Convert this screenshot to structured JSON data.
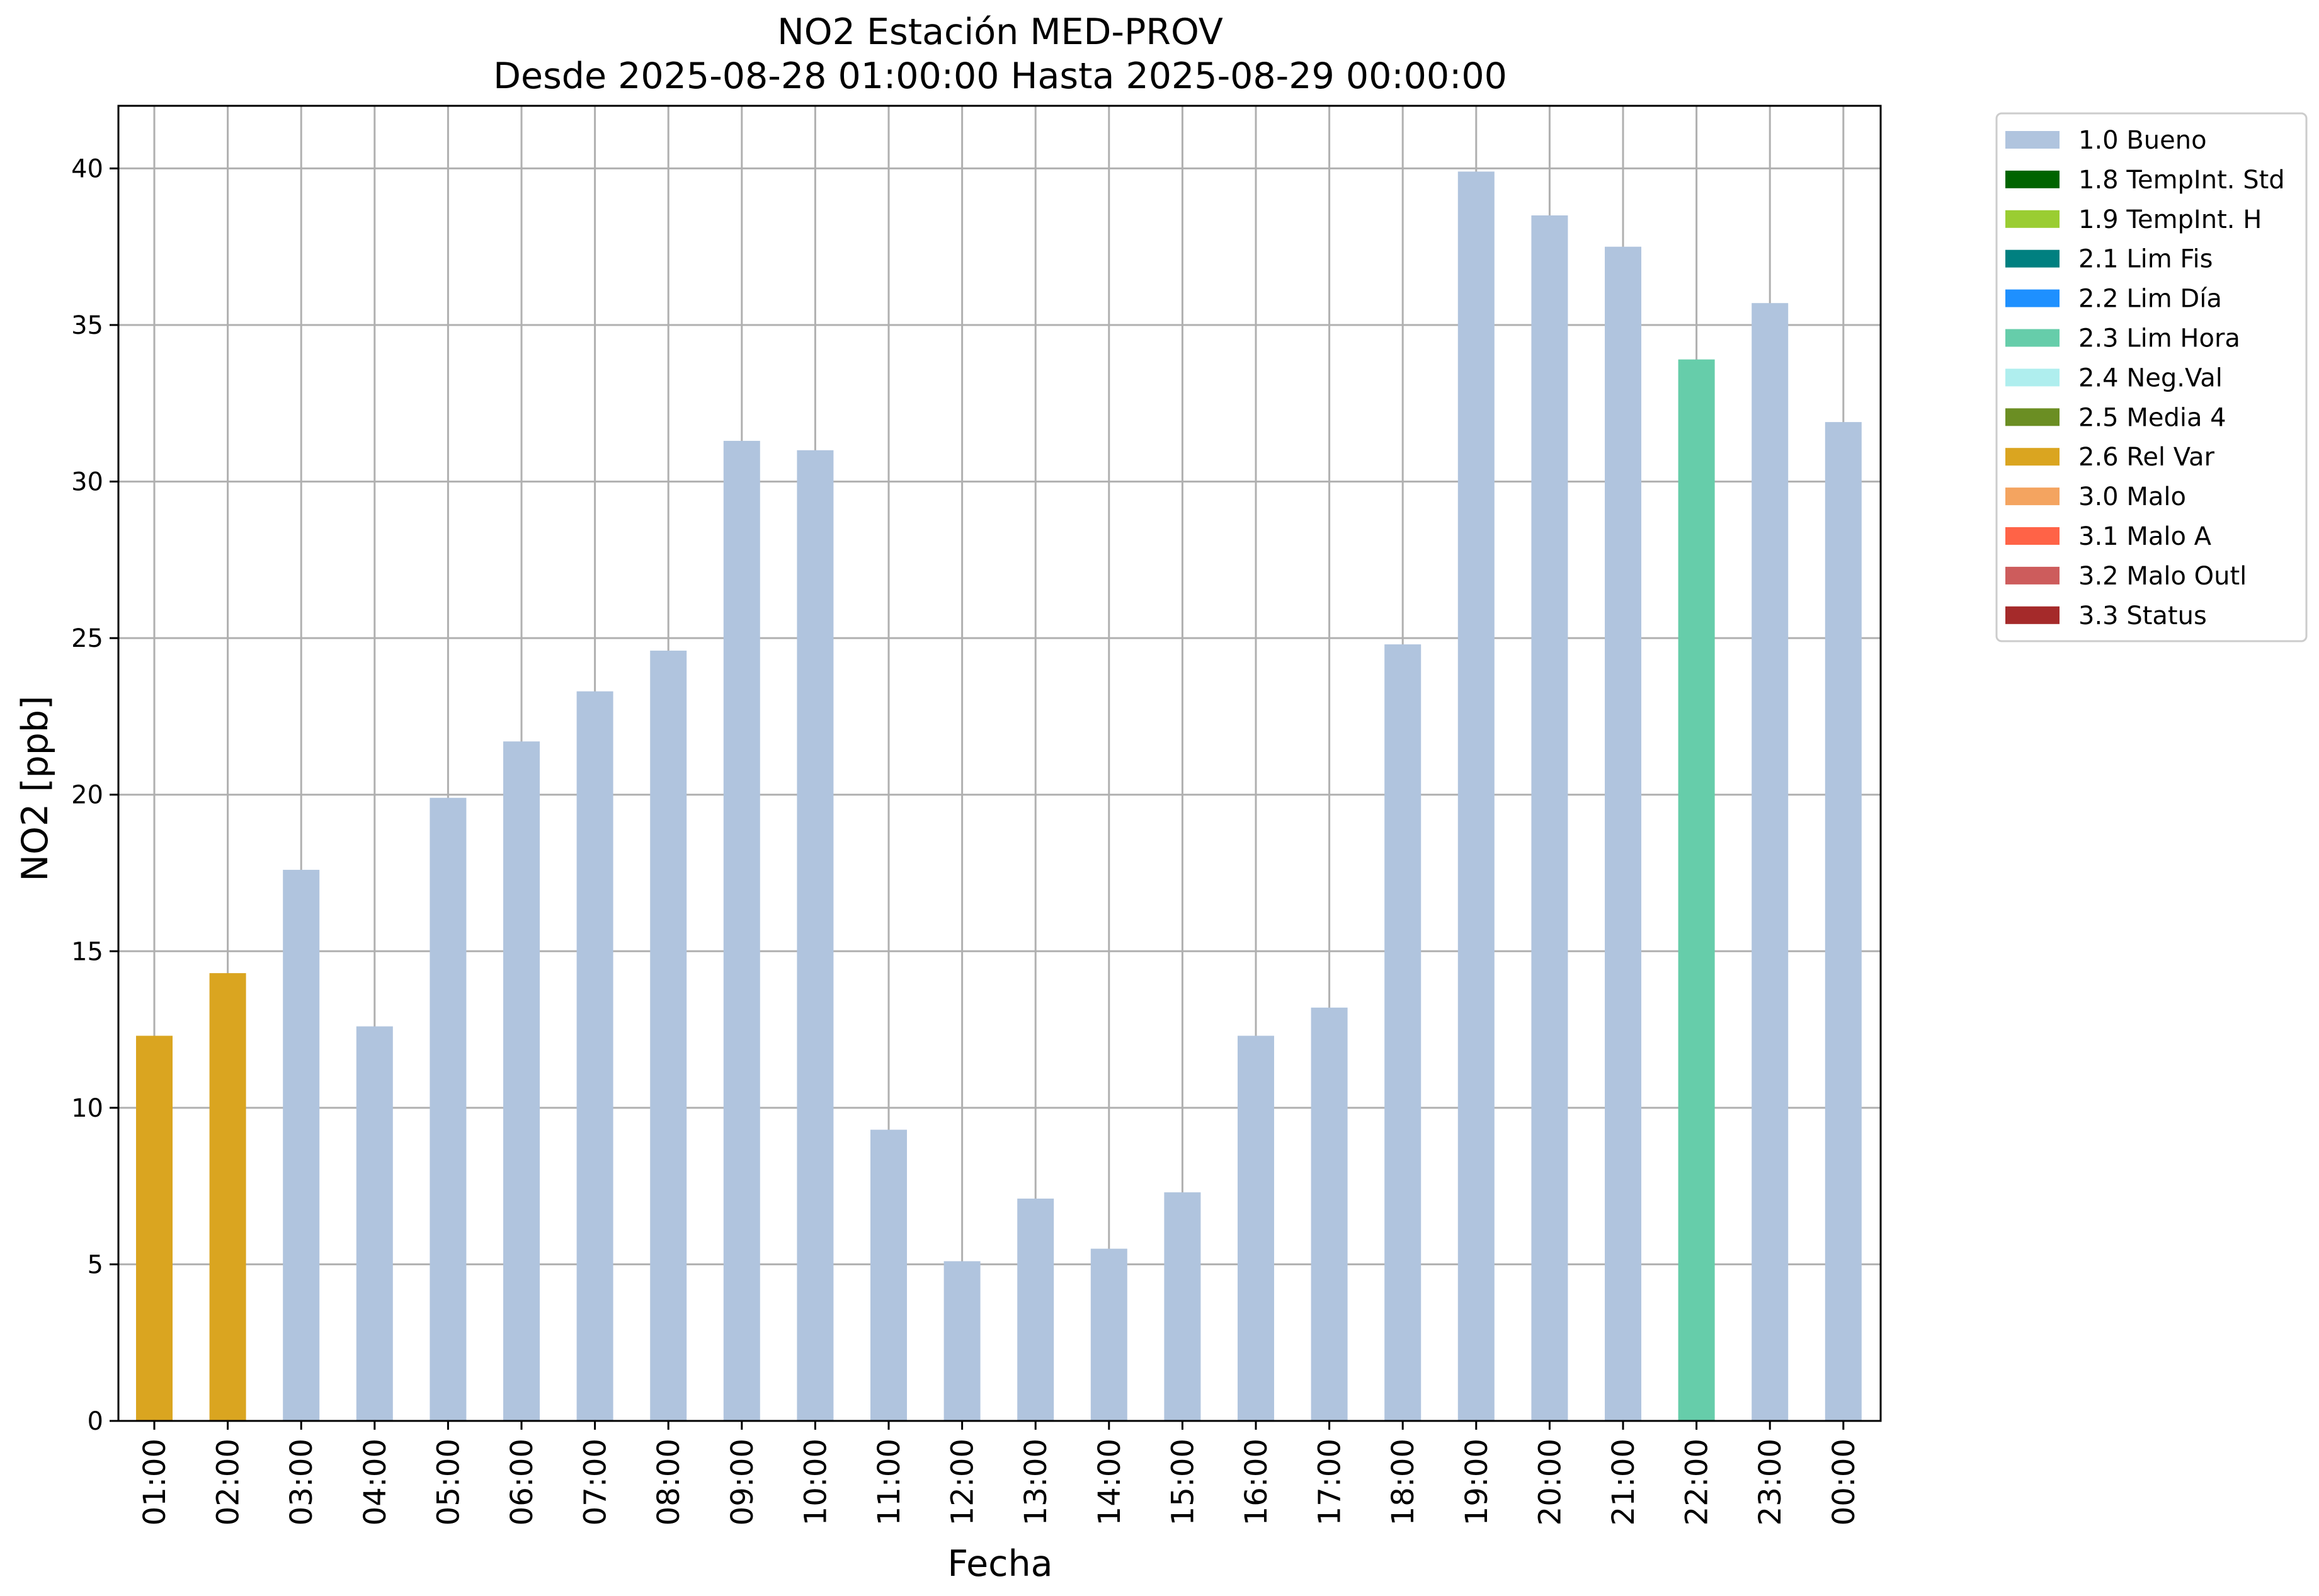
{
  "chart_data": {
    "type": "bar",
    "title": "NO2 Estación MED-PROV",
    "subtitle": "Desde 2025-08-28 01:00:00 Hasta 2025-08-29 00:00:00",
    "xlabel": "Fecha",
    "ylabel": "NO2 [ppb]",
    "ylim": [
      0,
      42
    ],
    "yticks": [
      0,
      5,
      10,
      15,
      20,
      25,
      30,
      35,
      40
    ],
    "grid": true,
    "legend_position": "outside-top-right",
    "categories": [
      "01:00",
      "02:00",
      "03:00",
      "04:00",
      "05:00",
      "06:00",
      "07:00",
      "08:00",
      "09:00",
      "10:00",
      "11:00",
      "12:00",
      "13:00",
      "14:00",
      "15:00",
      "16:00",
      "17:00",
      "18:00",
      "19:00",
      "20:00",
      "21:00",
      "22:00",
      "23:00",
      "00:00"
    ],
    "values": [
      12.3,
      14.3,
      17.6,
      12.6,
      19.9,
      21.7,
      23.3,
      24.6,
      31.3,
      31.0,
      9.3,
      5.1,
      7.1,
      5.5,
      7.3,
      12.3,
      13.2,
      24.8,
      39.9,
      38.5,
      37.5,
      33.9,
      35.7,
      31.9
    ],
    "flags": [
      "2.6 Rel Var",
      "2.6 Rel Var",
      "1.0 Bueno",
      "1.0 Bueno",
      "1.0 Bueno",
      "1.0 Bueno",
      "1.0 Bueno",
      "1.0 Bueno",
      "1.0 Bueno",
      "1.0 Bueno",
      "1.0 Bueno",
      "1.0 Bueno",
      "1.0 Bueno",
      "1.0 Bueno",
      "1.0 Bueno",
      "1.0 Bueno",
      "1.0 Bueno",
      "1.0 Bueno",
      "1.0 Bueno",
      "1.0 Bueno",
      "1.0 Bueno",
      "2.3 Lim Hora",
      "1.0 Bueno",
      "1.0 Bueno"
    ],
    "legend": [
      {
        "label": "1.0 Bueno",
        "color": "#b0c4de"
      },
      {
        "label": "1.8 TempInt. Std",
        "color": "#006400"
      },
      {
        "label": "1.9 TempInt. H",
        "color": "#9acd32"
      },
      {
        "label": "2.1 Lim Fis",
        "color": "#008080"
      },
      {
        "label": "2.2 Lim Día",
        "color": "#1e90ff"
      },
      {
        "label": "2.3 Lim Hora",
        "color": "#66cdaa"
      },
      {
        "label": "2.4 Neg.Val",
        "color": "#afeeee"
      },
      {
        "label": "2.5 Media 4",
        "color": "#6b8e23"
      },
      {
        "label": "2.6 Rel Var",
        "color": "#daa520"
      },
      {
        "label": "3.0 Malo",
        "color": "#f4a460"
      },
      {
        "label": "3.1 Malo A",
        "color": "#ff6347"
      },
      {
        "label": "3.2 Malo Outl",
        "color": "#cd5c5c"
      },
      {
        "label": "3.3 Status",
        "color": "#a52a2a"
      }
    ]
  }
}
